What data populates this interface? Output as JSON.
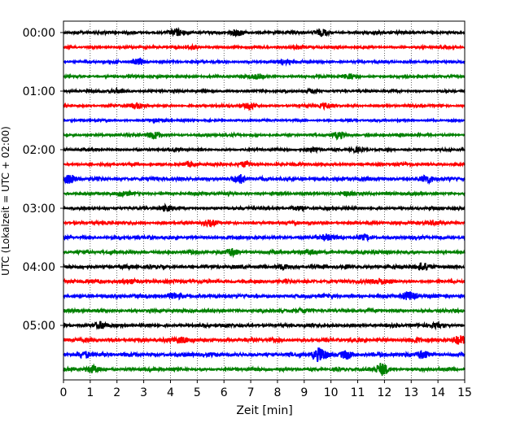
{
  "chart_data": {
    "type": "line",
    "title": "",
    "xlabel": "Zeit  [min]",
    "ylabel": "UTC (Lokalzeit = UTC + 02:00)",
    "xlim": [
      0,
      15
    ],
    "x_ticks": [
      "0",
      "1",
      "2",
      "3",
      "4",
      "5",
      "6",
      "7",
      "8",
      "9",
      "10",
      "11",
      "12",
      "13",
      "14",
      "15"
    ],
    "y_ticks": [
      "00:00",
      "01:00",
      "02:00",
      "03:00",
      "04:00",
      "05:00"
    ],
    "grid": "vertical dotted at each minute",
    "trace_interval_minutes": 15,
    "trace_count": 24,
    "trace_colors": [
      "#000000",
      "#ff0000",
      "#0000ff",
      "#008000"
    ],
    "traces": [
      {
        "start": "00:00",
        "color": "#000000",
        "amplitude": 0.35,
        "events": [
          {
            "t": 4.2,
            "a": 0.9
          },
          {
            "t": 6.5,
            "a": 0.8
          },
          {
            "t": 9.7,
            "a": 0.8
          }
        ]
      },
      {
        "start": "00:15",
        "color": "#ff0000",
        "amplitude": 0.3,
        "events": [
          {
            "t": 8.8,
            "a": 0.6
          },
          {
            "t": 4.8,
            "a": 0.5
          }
        ]
      },
      {
        "start": "00:30",
        "color": "#0000ff",
        "amplitude": 0.3,
        "events": [
          {
            "t": 2.8,
            "a": 0.8
          },
          {
            "t": 8.3,
            "a": 0.5
          }
        ]
      },
      {
        "start": "00:45",
        "color": "#008000",
        "amplitude": 0.3,
        "events": [
          {
            "t": 7.2,
            "a": 0.6
          },
          {
            "t": 10.7,
            "a": 0.6
          }
        ]
      },
      {
        "start": "01:00",
        "color": "#000000",
        "amplitude": 0.3,
        "events": [
          {
            "t": 2.0,
            "a": 0.5
          },
          {
            "t": 9.3,
            "a": 0.5
          }
        ]
      },
      {
        "start": "01:15",
        "color": "#ff0000",
        "amplitude": 0.3,
        "events": [
          {
            "t": 2.7,
            "a": 0.7
          },
          {
            "t": 7.0,
            "a": 0.7
          },
          {
            "t": 9.8,
            "a": 0.6
          }
        ]
      },
      {
        "start": "01:30",
        "color": "#0000ff",
        "amplitude": 0.25,
        "events": [
          {
            "t": 3.3,
            "a": 0.5
          }
        ]
      },
      {
        "start": "01:45",
        "color": "#008000",
        "amplitude": 0.3,
        "events": [
          {
            "t": 3.4,
            "a": 0.9
          },
          {
            "t": 10.3,
            "a": 0.8
          }
        ]
      },
      {
        "start": "02:00",
        "color": "#000000",
        "amplitude": 0.3,
        "events": [
          {
            "t": 9.3,
            "a": 0.6
          },
          {
            "t": 10.9,
            "a": 0.5
          }
        ]
      },
      {
        "start": "02:15",
        "color": "#ff0000",
        "amplitude": 0.35,
        "events": [
          {
            "t": 4.7,
            "a": 0.5
          },
          {
            "t": 6.8,
            "a": 0.6
          }
        ]
      },
      {
        "start": "02:30",
        "color": "#0000ff",
        "amplitude": 0.45,
        "events": [
          {
            "t": 0.2,
            "a": 0.9
          },
          {
            "t": 6.6,
            "a": 1.0
          },
          {
            "t": 13.6,
            "a": 0.8
          }
        ]
      },
      {
        "start": "02:45",
        "color": "#008000",
        "amplitude": 0.35,
        "events": [
          {
            "t": 2.3,
            "a": 0.6
          },
          {
            "t": 10.6,
            "a": 0.6
          }
        ]
      },
      {
        "start": "03:00",
        "color": "#000000",
        "amplitude": 0.35,
        "events": [
          {
            "t": 3.9,
            "a": 0.6
          },
          {
            "t": 8.8,
            "a": 0.6
          }
        ]
      },
      {
        "start": "03:15",
        "color": "#ff0000",
        "amplitude": 0.35,
        "events": [
          {
            "t": 5.5,
            "a": 0.6
          },
          {
            "t": 13.8,
            "a": 0.6
          }
        ]
      },
      {
        "start": "03:30",
        "color": "#0000ff",
        "amplitude": 0.4,
        "events": [
          {
            "t": 9.8,
            "a": 0.8
          },
          {
            "t": 11.3,
            "a": 0.6
          }
        ]
      },
      {
        "start": "03:45",
        "color": "#008000",
        "amplitude": 0.4,
        "events": [
          {
            "t": 6.3,
            "a": 1.0
          },
          {
            "t": 9.3,
            "a": 0.6
          }
        ]
      },
      {
        "start": "04:00",
        "color": "#000000",
        "amplitude": 0.45,
        "events": [
          {
            "t": 13.4,
            "a": 0.8
          },
          {
            "t": 8.2,
            "a": 0.6
          }
        ]
      },
      {
        "start": "04:15",
        "color": "#ff0000",
        "amplitude": 0.45,
        "events": [
          {
            "t": 11.8,
            "a": 0.7
          },
          {
            "t": 2.5,
            "a": 0.6
          }
        ]
      },
      {
        "start": "04:30",
        "color": "#0000ff",
        "amplitude": 0.45,
        "events": [
          {
            "t": 4.2,
            "a": 0.8
          },
          {
            "t": 12.9,
            "a": 0.9
          }
        ]
      },
      {
        "start": "04:45",
        "color": "#008000",
        "amplitude": 0.4,
        "events": [
          {
            "t": 9.0,
            "a": 0.6
          }
        ]
      },
      {
        "start": "05:00",
        "color": "#000000",
        "amplitude": 0.4,
        "events": [
          {
            "t": 1.4,
            "a": 0.9
          },
          {
            "t": 13.9,
            "a": 0.6
          }
        ]
      },
      {
        "start": "05:15",
        "color": "#ff0000",
        "amplitude": 0.45,
        "events": [
          {
            "t": 4.4,
            "a": 0.7
          },
          {
            "t": 13.1,
            "a": 0.6
          },
          {
            "t": 14.8,
            "a": 1.0
          }
        ]
      },
      {
        "start": "05:30",
        "color": "#0000ff",
        "amplitude": 0.5,
        "events": [
          {
            "t": 9.6,
            "a": 1.6
          },
          {
            "t": 10.6,
            "a": 1.1
          },
          {
            "t": 13.4,
            "a": 0.9
          },
          {
            "t": 0.8,
            "a": 0.8
          }
        ]
      },
      {
        "start": "05:45",
        "color": "#008000",
        "amplitude": 0.4,
        "events": [
          {
            "t": 11.9,
            "a": 1.7
          },
          {
            "t": 1.1,
            "a": 0.8
          }
        ]
      }
    ]
  }
}
